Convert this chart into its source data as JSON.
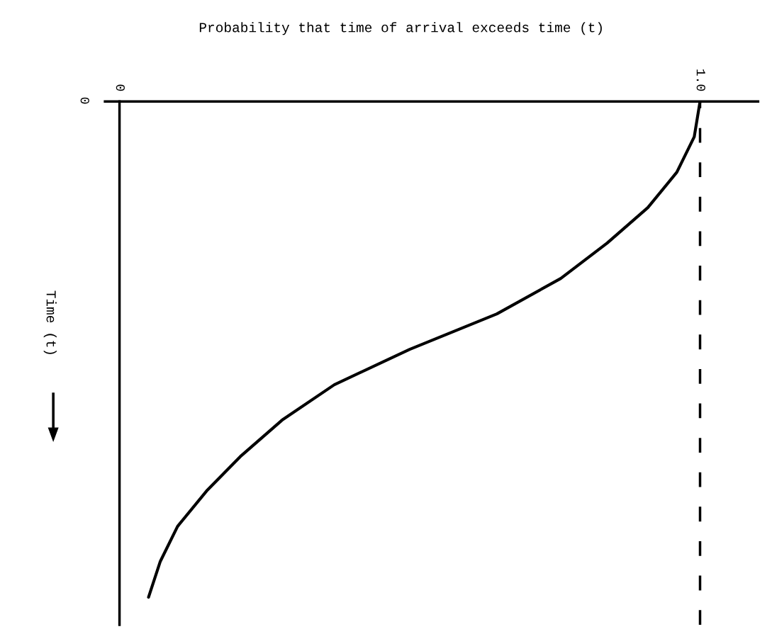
{
  "chart_data": {
    "type": "line",
    "orientation": "horizontal",
    "xlabel": "Probability that time of arrival exceeds time (t)",
    "ylabel": "Time (t)",
    "categories": [
      "0",
      null,
      null,
      null,
      null,
      null,
      null,
      null,
      null,
      null,
      null,
      null,
      null,
      null,
      null
    ],
    "values": [
      1.0,
      0.99,
      0.96,
      0.91,
      0.84,
      0.76,
      0.65,
      0.5,
      0.37,
      0.28,
      0.21,
      0.15,
      0.1,
      0.07,
      0.05
    ],
    "color": "#000000",
    "xlim": [
      -0.025,
      1.1
    ],
    "xticks": [
      0,
      {
        "value": 1.0,
        "label": "1.0"
      }
    ],
    "ref_lines": [
      {
        "axis": "x",
        "value": 1.0,
        "line_style": "dashed",
        "color": "#000000"
      }
    ],
    "marker": "none",
    "line_style": "solid",
    "grid": false,
    "legend": false
  }
}
